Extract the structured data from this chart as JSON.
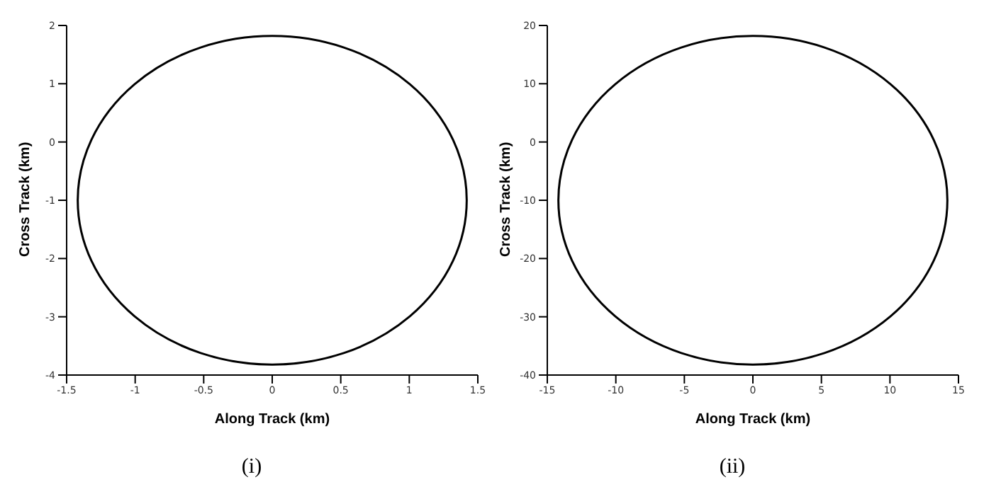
{
  "chart_data": [
    {
      "type": "line",
      "xlabel": "Along Track (km)",
      "ylabel": "Cross Track (km)",
      "annotations": [
        "(i)"
      ],
      "xlim": [
        -1.5,
        1.5
      ],
      "xticks": [
        -1.5,
        -1,
        -0.5,
        0,
        0.5,
        1,
        1.5
      ],
      "ylim": [
        -4,
        2
      ],
      "yticks": [
        -4,
        -3,
        -2,
        -1,
        0,
        1,
        2
      ],
      "grid": false
    },
    {
      "type": "line",
      "xlabel": "Along Track (km)",
      "ylabel": "Cross Track (km)",
      "annotations": [
        "(ii)"
      ],
      "xlim": [
        -15,
        15
      ],
      "xticks": [
        -15,
        -10,
        -5,
        0,
        5,
        10,
        15
      ],
      "ylim": [
        -40,
        20
      ],
      "yticks": [
        -40,
        -30,
        -20,
        -10,
        0,
        10,
        20
      ],
      "grid": false
    }
  ]
}
